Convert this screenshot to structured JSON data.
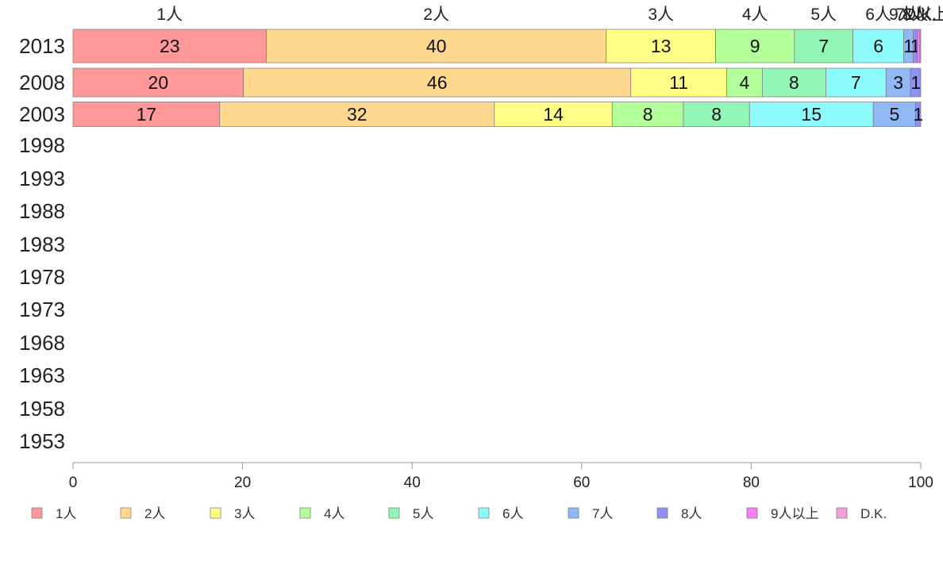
{
  "chart_data": {
    "type": "bar",
    "orientation": "horizontal",
    "stacked": true,
    "title": "",
    "xlabel": "",
    "ylabel": "",
    "xlim": [
      0,
      100
    ],
    "x_ticks": [
      "0",
      "20",
      "40",
      "60",
      "80",
      "100"
    ],
    "grid": false,
    "legend_position": "bottom",
    "categories": [
      "2013",
      "2008",
      "2003",
      "1998",
      "1993",
      "1988",
      "1983",
      "1978",
      "1973",
      "1968",
      "1963",
      "1958",
      "1953"
    ],
    "top_labels": [
      "1人",
      "2人",
      "3人",
      "4人",
      "5人",
      "6人",
      "7人",
      "8人",
      "9人以上",
      "D.K."
    ],
    "series": [
      {
        "name": "1人",
        "color": "#ff9999",
        "values": [
          22.8,
          20.1,
          17.3,
          null,
          null,
          null,
          null,
          null,
          null,
          null,
          null,
          null,
          null
        ],
        "labels": [
          "23",
          "20",
          "17"
        ]
      },
      {
        "name": "2人",
        "color": "#ffd890",
        "values": [
          40.1,
          45.7,
          32.4,
          null,
          null,
          null,
          null,
          null,
          null,
          null,
          null,
          null,
          null
        ],
        "labels": [
          "40",
          "46",
          "32"
        ]
      },
      {
        "name": "3人",
        "color": "#ffff88",
        "values": [
          12.9,
          11.3,
          13.9,
          null,
          null,
          null,
          null,
          null,
          null,
          null,
          null,
          null,
          null
        ],
        "labels": [
          "13",
          "11",
          "14"
        ]
      },
      {
        "name": "4人",
        "color": "#b3ff99",
        "values": [
          9.3,
          4.2,
          8.4,
          null,
          null,
          null,
          null,
          null,
          null,
          null,
          null,
          null,
          null
        ],
        "labels": [
          "9",
          "4",
          "8"
        ]
      },
      {
        "name": "5人",
        "color": "#91f5b5",
        "values": [
          6.9,
          7.5,
          7.8,
          null,
          null,
          null,
          null,
          null,
          null,
          null,
          null,
          null,
          null
        ],
        "labels": [
          "7",
          "8",
          "8"
        ]
      },
      {
        "name": "6人",
        "color": "#8dfbfb",
        "values": [
          6.0,
          7.1,
          14.6,
          null,
          null,
          null,
          null,
          null,
          null,
          null,
          null,
          null,
          null
        ],
        "labels": [
          "6",
          "7",
          "15"
        ]
      },
      {
        "name": "7人",
        "color": "#8fb8f5",
        "values": [
          1.1,
          2.9,
          5.0,
          null,
          null,
          null,
          null,
          null,
          null,
          null,
          null,
          null,
          null
        ],
        "labels": [
          "1",
          "3",
          "5"
        ]
      },
      {
        "name": "8人",
        "color": "#9090f5",
        "values": [
          0.5,
          1.2,
          0.6,
          null,
          null,
          null,
          null,
          null,
          null,
          null,
          null,
          null,
          null
        ],
        "labels": [
          "1",
          "1",
          "1"
        ]
      },
      {
        "name": "9人以上",
        "color": "#f87cf8",
        "values": [
          0.3,
          0.0,
          0.0,
          null,
          null,
          null,
          null,
          null,
          null,
          null,
          null,
          null,
          null
        ],
        "labels": [
          "",
          "",
          ""
        ]
      },
      {
        "name": "D.K.",
        "color": "#f59fd8",
        "values": [
          0.1,
          0.0,
          0.0,
          null,
          null,
          null,
          null,
          null,
          null,
          null,
          null,
          null,
          null
        ],
        "labels": [
          "",
          "",
          ""
        ]
      }
    ]
  }
}
